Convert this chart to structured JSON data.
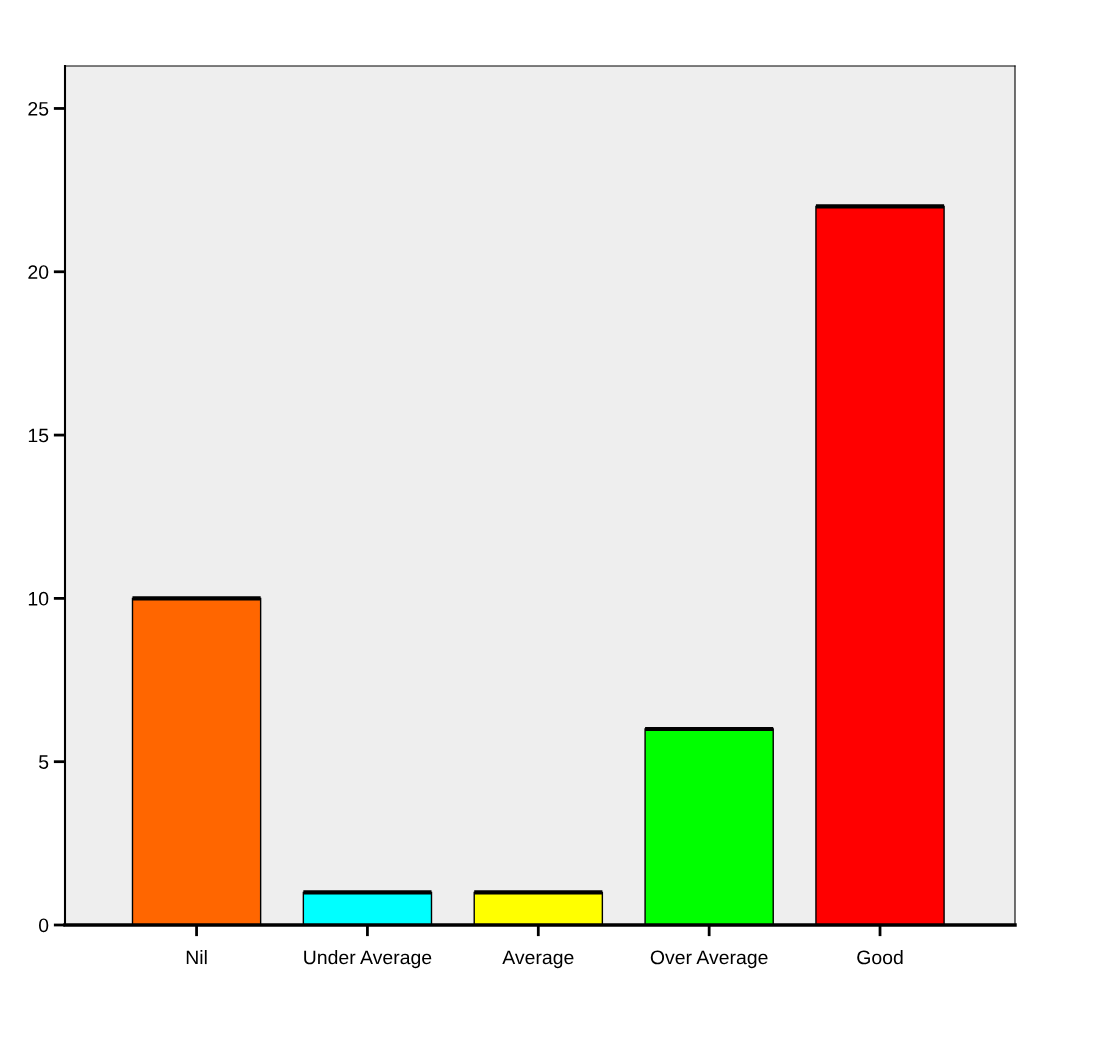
{
  "chart_data": {
    "type": "bar",
    "categories": [
      "Nil",
      "Under Average",
      "Average",
      "Over Average",
      "Good"
    ],
    "values": [
      10,
      1,
      1,
      6,
      22
    ],
    "colors": [
      "#ff6600",
      "#00ffff",
      "#ffff00",
      "#00ff00",
      "#ff0000"
    ],
    "ylim": [
      0,
      26.3
    ],
    "yticks": [
      0,
      5,
      10,
      15,
      20,
      25
    ],
    "grid": false,
    "legend": false
  }
}
